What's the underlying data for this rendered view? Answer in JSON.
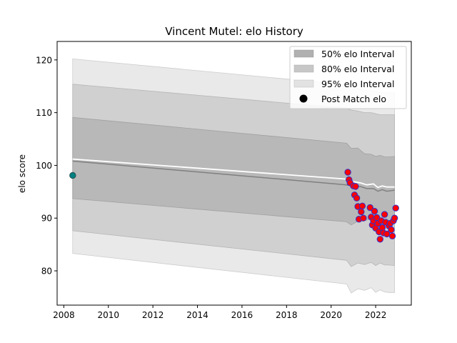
{
  "chart_data": {
    "type": "line",
    "title": "Vincent Mutel: elo History",
    "xlabel": "",
    "ylabel": "elo score",
    "xlim": [
      2007.7,
      2023.6
    ],
    "ylim": [
      73.5,
      123.5
    ],
    "xticks": [
      2008,
      2010,
      2012,
      2014,
      2016,
      2018,
      2020,
      2022
    ],
    "yticks": [
      80,
      90,
      100,
      110,
      120
    ],
    "grid": false,
    "legend_position": "top-right",
    "legend": [
      {
        "label": "50% elo Interval",
        "color": "#b0b0b0",
        "kind": "patch"
      },
      {
        "label": "80% elo Interval",
        "color": "#c7c7c7",
        "kind": "patch"
      },
      {
        "label": "95% elo Interval",
        "color": "#e2e2e2",
        "kind": "patch"
      },
      {
        "label": "Post Match elo",
        "color": "#000000",
        "kind": "marker"
      }
    ],
    "bands": {
      "x": [
        2008.4,
        2020.7,
        2020.9,
        2021.2,
        2021.5,
        2021.8,
        2022.0,
        2022.2,
        2022.4,
        2022.6,
        2022.85
      ],
      "lower95": [
        83.3,
        77.5,
        75.8,
        76.6,
        76.3,
        76.8,
        75.9,
        76.4,
        76.0,
        75.9,
        75.9
      ],
      "upper95": [
        120.2,
        115.3,
        114.8,
        114.6,
        114.2,
        114.2,
        114.0,
        113.8,
        113.8,
        113.8,
        113.8
      ],
      "lower80": [
        87.6,
        82.0,
        80.8,
        81.5,
        81.2,
        81.6,
        81.0,
        81.5,
        81.1,
        81.1,
        81.0
      ],
      "upper80": [
        115.4,
        110.8,
        110.5,
        110.3,
        110.0,
        110.0,
        109.8,
        109.6,
        109.6,
        109.6,
        109.6
      ],
      "lower50": [
        93.7,
        89.3,
        88.7,
        89.4,
        89.5,
        89.9,
        89.3,
        89.8,
        89.4,
        89.5,
        89.6
      ],
      "upper50": [
        109.1,
        104.2,
        103.2,
        103.3,
        102.2,
        102.1,
        101.7,
        101.9,
        101.6,
        101.6,
        101.7
      ]
    },
    "series": [
      {
        "kind": "mean",
        "color": "#ffffff",
        "x": [
          2008.4,
          2020.7,
          2021.0,
          2021.3,
          2021.6,
          2021.9,
          2022.1,
          2022.3,
          2022.5,
          2022.85
        ],
        "y": [
          101.2,
          97.4,
          96.9,
          96.7,
          96.3,
          96.5,
          95.8,
          96.1,
          95.9,
          95.9
        ]
      },
      {
        "kind": "median",
        "color": "#808080",
        "x": [
          2008.4,
          2020.7,
          2021.0,
          2021.3,
          2021.6,
          2021.9,
          2022.1,
          2022.3,
          2022.5,
          2022.85
        ],
        "y": [
          100.8,
          96.3,
          96.1,
          96.0,
          95.6,
          95.6,
          95.1,
          95.4,
          95.1,
          95.3
        ]
      }
    ],
    "initial_point": {
      "x": 2008.4,
      "y": 98.1,
      "fill": "#008080",
      "edge": "#2f4f4f"
    },
    "points_fill": "#ff0000",
    "points_edge": "#3030cc",
    "points": [
      {
        "x": 2020.75,
        "y": 98.7
      },
      {
        "x": 2020.8,
        "y": 97.3
      },
      {
        "x": 2020.85,
        "y": 96.7
      },
      {
        "x": 2021.0,
        "y": 96.1
      },
      {
        "x": 2021.05,
        "y": 94.4
      },
      {
        "x": 2021.1,
        "y": 96.0
      },
      {
        "x": 2021.15,
        "y": 93.8
      },
      {
        "x": 2021.2,
        "y": 92.2
      },
      {
        "x": 2021.25,
        "y": 89.8
      },
      {
        "x": 2021.35,
        "y": 91.2
      },
      {
        "x": 2021.4,
        "y": 92.3
      },
      {
        "x": 2021.45,
        "y": 90.0
      },
      {
        "x": 2021.75,
        "y": 92.0
      },
      {
        "x": 2021.8,
        "y": 90.2
      },
      {
        "x": 2021.85,
        "y": 88.7
      },
      {
        "x": 2021.9,
        "y": 89.5
      },
      {
        "x": 2021.95,
        "y": 91.3
      },
      {
        "x": 2022.0,
        "y": 88.1
      },
      {
        "x": 2022.05,
        "y": 90.1
      },
      {
        "x": 2022.1,
        "y": 89.0
      },
      {
        "x": 2022.15,
        "y": 87.4
      },
      {
        "x": 2022.2,
        "y": 86.0
      },
      {
        "x": 2022.25,
        "y": 89.5
      },
      {
        "x": 2022.3,
        "y": 88.2
      },
      {
        "x": 2022.35,
        "y": 87.2
      },
      {
        "x": 2022.4,
        "y": 90.7
      },
      {
        "x": 2022.45,
        "y": 89.2
      },
      {
        "x": 2022.5,
        "y": 87.0
      },
      {
        "x": 2022.6,
        "y": 88.5
      },
      {
        "x": 2022.65,
        "y": 89.0
      },
      {
        "x": 2022.7,
        "y": 87.8
      },
      {
        "x": 2022.75,
        "y": 86.6
      },
      {
        "x": 2022.8,
        "y": 89.5
      },
      {
        "x": 2022.85,
        "y": 90.0
      },
      {
        "x": 2022.9,
        "y": 91.9
      }
    ]
  }
}
